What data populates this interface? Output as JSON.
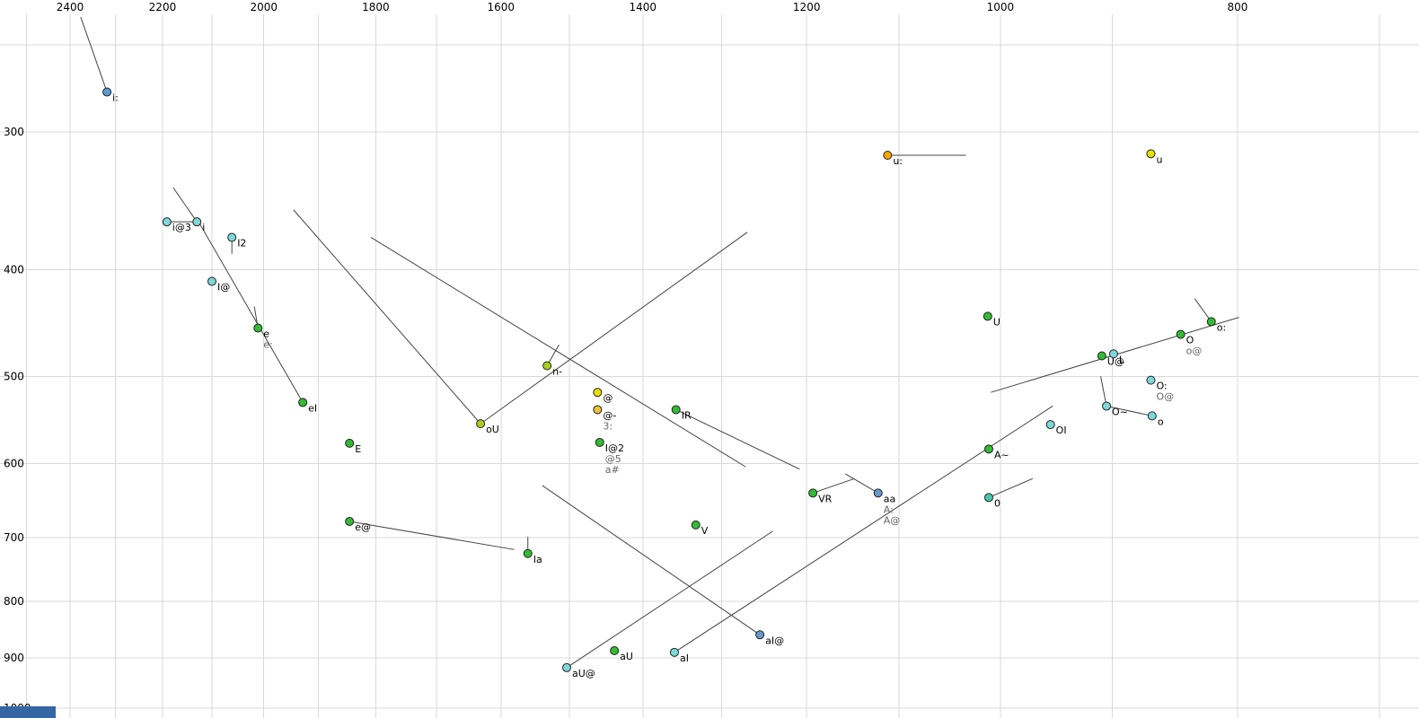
{
  "chart_data": {
    "type": "scatter",
    "title": "",
    "xlabel": "",
    "ylabel": "",
    "x_axis": {
      "scale": "log",
      "reversed": true,
      "ticks": [
        2400,
        2200,
        2000,
        1800,
        1600,
        1400,
        1200,
        1000,
        800
      ],
      "grid_values": [
        2500,
        2400,
        2300,
        2200,
        2100,
        2000,
        1900,
        1800,
        1700,
        1600,
        1500,
        1400,
        1300,
        1200,
        1100,
        1000,
        900,
        800,
        700
      ]
    },
    "y_axis": {
      "scale": "log",
      "increases_downward": true,
      "ticks": [
        300,
        400,
        500,
        600,
        700,
        800,
        900,
        1000
      ],
      "grid_values": [
        250,
        300,
        400,
        500,
        600,
        700,
        800,
        900,
        1000
      ]
    },
    "points": [
      {
        "labels": [
          "i:"
        ],
        "f2": 2318,
        "f1": 276,
        "color": "blue"
      },
      {
        "labels": [
          "u:"
        ],
        "f2": 1112,
        "f1": 315,
        "color": "orange"
      },
      {
        "labels": [
          "u"
        ],
        "f2": 868,
        "f1": 314,
        "color": "yellow"
      },
      {
        "labels": [
          "i@3"
        ],
        "f2": 2191,
        "f1": 362,
        "color": "cyan"
      },
      {
        "labels": [
          "i"
        ],
        "f2": 2130,
        "f1": 362,
        "color": "cyan"
      },
      {
        "labels": [
          "I2"
        ],
        "f2": 2061,
        "f1": 374,
        "color": "cyan"
      },
      {
        "labels": [
          "I@"
        ],
        "f2": 2100,
        "f1": 410,
        "color": "cyan"
      },
      {
        "labels": [
          "e",
          "e:"
        ],
        "f2": 2011,
        "f1": 452,
        "color": "green"
      },
      {
        "labels": [
          "eI"
        ],
        "f2": 1928,
        "f1": 528,
        "color": "green"
      },
      {
        "labels": [
          "E"
        ],
        "f2": 1845,
        "f1": 575,
        "color": "green"
      },
      {
        "labels": [
          "e@"
        ],
        "f2": 1845,
        "f1": 677,
        "color": "green"
      },
      {
        "labels": [
          "Ia"
        ],
        "f2": 1560,
        "f1": 724,
        "color": "green"
      },
      {
        "labels": [
          "oU"
        ],
        "f2": 1631,
        "f1": 552,
        "color": "yellowgreen"
      },
      {
        "labels": [
          "n-"
        ],
        "f2": 1532,
        "f1": 489,
        "color": "yellowgreen"
      },
      {
        "labels": [
          "@"
        ],
        "f2": 1461,
        "f1": 517,
        "color": "yellow"
      },
      {
        "labels": [
          "@-",
          "3:"
        ],
        "f2": 1461,
        "f1": 536,
        "color": "amber"
      },
      {
        "labels": [
          "IR"
        ],
        "f2": 1357,
        "f1": 536,
        "color": "green"
      },
      {
        "labels": [
          "I@2",
          "@5",
          "a#"
        ],
        "f2": 1458,
        "f1": 574,
        "color": "green"
      },
      {
        "labels": [
          "V"
        ],
        "f2": 1332,
        "f1": 682,
        "color": "green"
      },
      {
        "labels": [
          "VR"
        ],
        "f2": 1193,
        "f1": 638,
        "color": "green"
      },
      {
        "labels": [
          "aa",
          "A:",
          "A@"
        ],
        "f2": 1122,
        "f1": 638,
        "color": "steel"
      },
      {
        "labels": [
          "U"
        ],
        "f2": 1012,
        "f1": 441,
        "color": "green"
      },
      {
        "labels": [
          "A~"
        ],
        "f2": 1011,
        "f1": 582,
        "color": "green"
      },
      {
        "labels": [
          "0"
        ],
        "f2": 1011,
        "f1": 644,
        "color": "teal"
      },
      {
        "labels": [
          "OI"
        ],
        "f2": 954,
        "f1": 553,
        "color": "cyan"
      },
      {
        "labels": [
          "U@"
        ],
        "f2": 909,
        "f1": 479,
        "color": "green"
      },
      {
        "labels": [
          "L"
        ],
        "f2": 899,
        "f1": 477,
        "color": "cyan"
      },
      {
        "labels": [
          "O",
          "o@"
        ],
        "f2": 844,
        "f1": 458,
        "color": "green"
      },
      {
        "labels": [
          "o:"
        ],
        "f2": 820,
        "f1": 446,
        "color": "green"
      },
      {
        "labels": [
          "O:",
          "O@"
        ],
        "f2": 868,
        "f1": 504,
        "color": "cyan"
      },
      {
        "labels": [
          "O~"
        ],
        "f2": 905,
        "f1": 532,
        "color": "cyan"
      },
      {
        "labels": [
          "o"
        ],
        "f2": 867,
        "f1": 543,
        "color": "cyan"
      },
      {
        "labels": [
          "aI@"
        ],
        "f2": 1254,
        "f1": 858,
        "color": "steel"
      },
      {
        "labels": [
          "aU"
        ],
        "f2": 1438,
        "f1": 887,
        "color": "green"
      },
      {
        "labels": [
          "aI"
        ],
        "f2": 1359,
        "f1": 890,
        "color": "cyan"
      },
      {
        "labels": [
          "aU@"
        ],
        "f2": 1504,
        "f1": 919,
        "color": "cyan"
      }
    ],
    "segments": [
      {
        "f2a": 2376,
        "f1a": 236,
        "f2b": 2318,
        "f1b": 276
      },
      {
        "f2a": 2178,
        "f1a": 337,
        "f2b": 2130,
        "f1b": 362
      },
      {
        "f2a": 2191,
        "f1a": 362,
        "f2b": 2130,
        "f1b": 362
      },
      {
        "f2a": 2125,
        "f1a": 363,
        "f2b": 1928,
        "f1b": 528
      },
      {
        "f2a": 2061,
        "f1a": 374,
        "f2b": 2061,
        "f1b": 387
      },
      {
        "f2a": 2018,
        "f1a": 432,
        "f2b": 2011,
        "f1b": 452
      },
      {
        "f2a": 1945,
        "f1a": 353,
        "f2b": 1631,
        "f1b": 552
      },
      {
        "f2a": 1631,
        "f1a": 552,
        "f2b": 1269,
        "f1b": 370
      },
      {
        "f2a": 1808,
        "f1a": 374,
        "f2b": 1271,
        "f1b": 604
      },
      {
        "f2a": 1845,
        "f1a": 677,
        "f2b": 1580,
        "f1b": 718
      },
      {
        "f2a": 1560,
        "f1a": 699,
        "f2b": 1560,
        "f1b": 724
      },
      {
        "f2a": 1532,
        "f1a": 489,
        "f2b": 1515,
        "f1b": 468
      },
      {
        "f2a": 1254,
        "f1a": 858,
        "f2b": 1539,
        "f1b": 628
      },
      {
        "f2a": 1504,
        "f1a": 919,
        "f2b": 1239,
        "f1b": 691
      },
      {
        "f2a": 1359,
        "f1a": 890,
        "f2b": 952,
        "f1b": 532
      },
      {
        "f2a": 1357,
        "f1a": 536,
        "f2b": 1208,
        "f1b": 607
      },
      {
        "f2a": 1193,
        "f1a": 638,
        "f2b": 1147,
        "f1b": 619
      },
      {
        "f2a": 1122,
        "f1a": 638,
        "f2b": 1157,
        "f1b": 613
      },
      {
        "f2a": 1011,
        "f1a": 644,
        "f2b": 970,
        "f1b": 619
      },
      {
        "f2a": 1112,
        "f1a": 315,
        "f2b": 1033,
        "f1b": 315
      },
      {
        "f2a": 833,
        "f1a": 425,
        "f2b": 820,
        "f1b": 446
      },
      {
        "f2a": 799,
        "f1a": 442,
        "f2b": 1009,
        "f1b": 517
      },
      {
        "f2a": 910,
        "f1a": 500,
        "f2b": 905,
        "f1b": 532
      },
      {
        "f2a": 905,
        "f1a": 532,
        "f2b": 867,
        "f1b": 543
      }
    ]
  },
  "colors": {
    "blue": "#5b9bd5",
    "cyan": "#7fd8d8",
    "green": "#33bb33",
    "yellow": "#e8e000",
    "orange": "#ffa500",
    "yellowgreen": "#aacc22",
    "amber": "#edc030",
    "teal": "#44c8b0",
    "steel": "#6699cc",
    "grid": "#d9d9d9",
    "segment": "#444444",
    "tick_text": "#000000",
    "label_primary": "#000000",
    "label_secondary": "#666666",
    "point_stroke": "#222222"
  },
  "misc": {
    "corner_bar_color": "#3465a4"
  }
}
